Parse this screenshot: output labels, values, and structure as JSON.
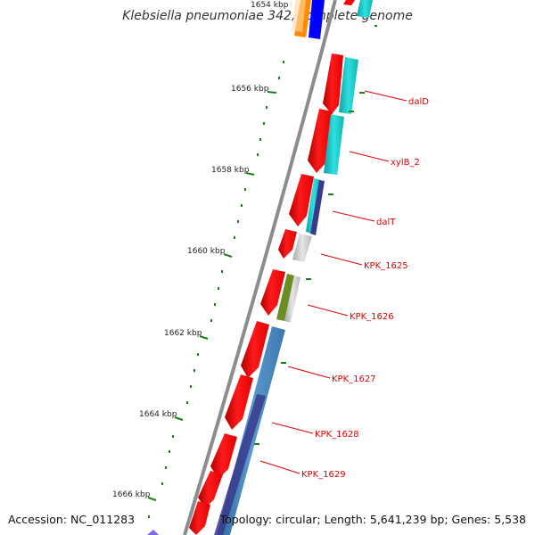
{
  "title": "Klebsiella pneumoniae 342, complete genome",
  "footer": {
    "accession": "Accession: NC_011283",
    "summary": "Topology: circular; Length: 5,641,239 bp; Genes: 5,538"
  },
  "ruler": {
    "tick_labels": [
      "1654 kbp",
      "1656 kbp",
      "1658 kbp",
      "1660 kbp",
      "1662 kbp",
      "1664 kbp",
      "1666 kbp"
    ]
  },
  "genes": [
    "dalD",
    "xylB_2",
    "dalT",
    "KPK_1625",
    "KPK_1626",
    "KPK_1627",
    "KPK_1628",
    "KPK_1629"
  ],
  "colors": {
    "cds": "#ff0000",
    "backbone": "#8c8c8c",
    "ruler": "#1a7f1a",
    "teal": "#19c6c6",
    "steelblue": "#4682b4",
    "navy": "#3a3a8c",
    "gray": "#c8c8c8",
    "olive": "#6b8e23",
    "orange": "#ff8c00",
    "blue": "#0000ff",
    "label": "#e00000"
  }
}
